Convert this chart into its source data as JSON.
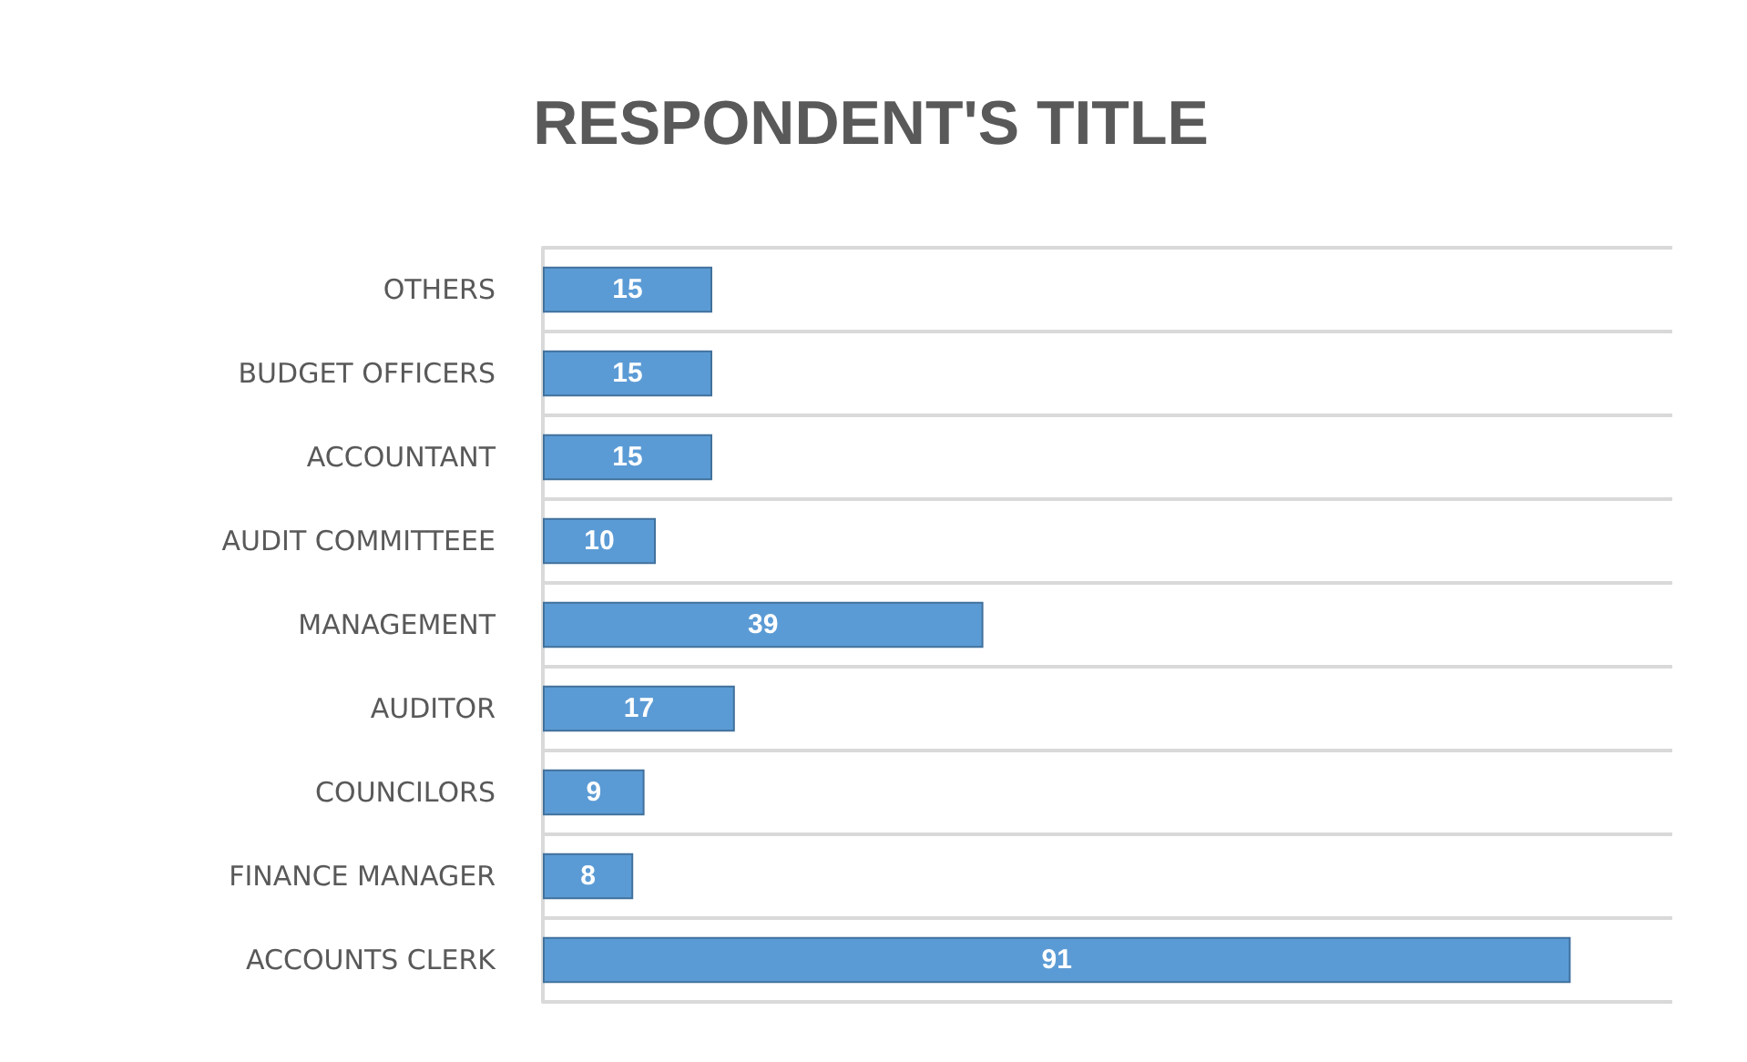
{
  "chart_data": {
    "type": "bar",
    "orientation": "horizontal",
    "title": "RESPONDENT'S TITLE",
    "categories": [
      "OTHERS",
      "BUDGET OFFICERS",
      "ACCOUNTANT",
      "AUDIT COMMITTEEE",
      "MANAGEMENT",
      "AUDITOR",
      "COUNCILORS",
      "FINANCE MANAGER",
      "ACCOUNTS CLERK"
    ],
    "values": [
      15,
      15,
      15,
      10,
      39,
      17,
      9,
      8,
      91
    ],
    "color": "#5b9bd5",
    "data_labels": true,
    "grid": "y"
  }
}
